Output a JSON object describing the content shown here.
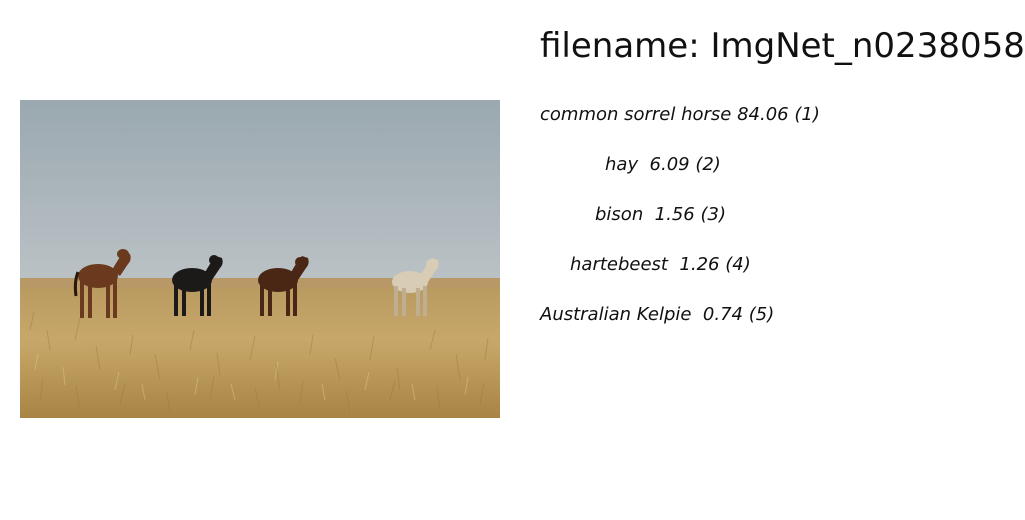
{
  "filename_line": "filename: ImgNet_n0238058",
  "image": {
    "subject": "four horses standing in dry grassland under a gray-blue sky",
    "colors": {
      "sky_top": "#9aa8b0",
      "sky_bottom": "#b8c0c4",
      "grass_light": "#c9a867",
      "grass_dark": "#a9823f"
    }
  },
  "predictions": [
    "common sorrel horse 84.06 (1)",
    "hay  6.09 (2)",
    "bison  1.56 (3)",
    "hartebeest  1.26 (4)",
    "Australian Kelpie  0.74 (5)"
  ]
}
